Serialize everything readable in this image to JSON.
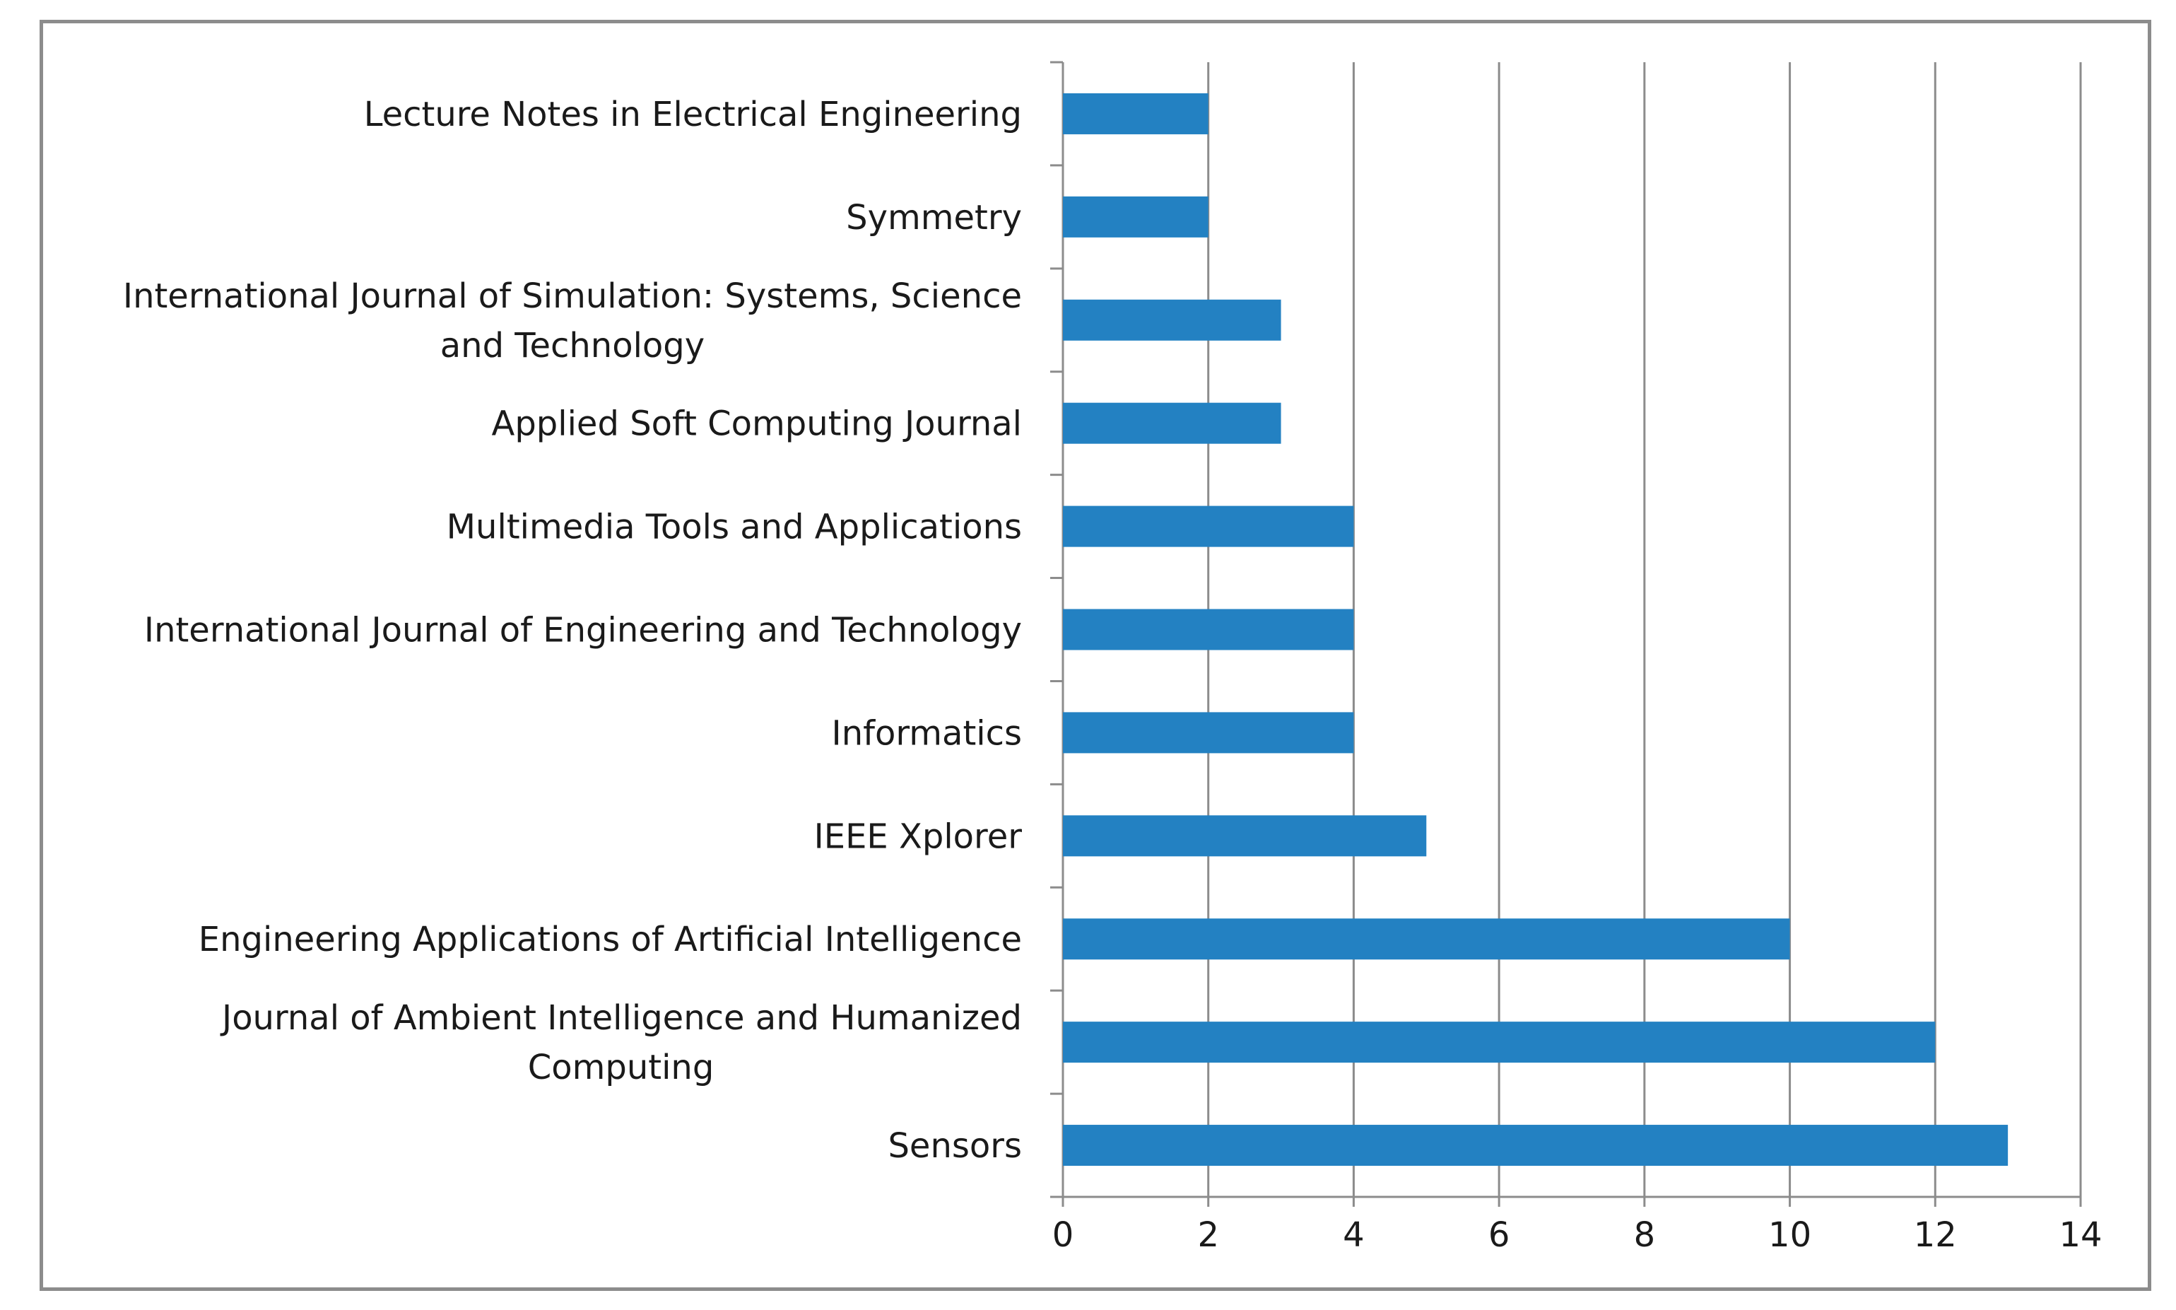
{
  "chart_data": {
    "type": "bar",
    "orientation": "horizontal",
    "title": "",
    "xlabel": "",
    "ylabel": "",
    "xlim": [
      0,
      14
    ],
    "x_ticks": [
      "0",
      "2",
      "4",
      "6",
      "8",
      "10",
      "12",
      "14"
    ],
    "grid": true,
    "legend": "none",
    "bar_color": "#2381c2",
    "categories": [
      [
        "Lecture Notes in Electrical Engineering"
      ],
      [
        "Symmetry"
      ],
      [
        "International Journal of Simulation: Systems, Science",
        "and Technology"
      ],
      [
        "Applied Soft Computing Journal"
      ],
      [
        "Multimedia Tools and Applications"
      ],
      [
        "International Journal of Engineering and Technology"
      ],
      [
        "Informatics"
      ],
      [
        "IEEE Xplorer"
      ],
      [
        "Engineering Applications of Artificial Intelligence"
      ],
      [
        "Journal of Ambient Intelligence and Humanized",
        "Computing"
      ],
      [
        "Sensors"
      ]
    ],
    "values": [
      2,
      2,
      3,
      3,
      4,
      4,
      4,
      5,
      10,
      12,
      13
    ]
  }
}
